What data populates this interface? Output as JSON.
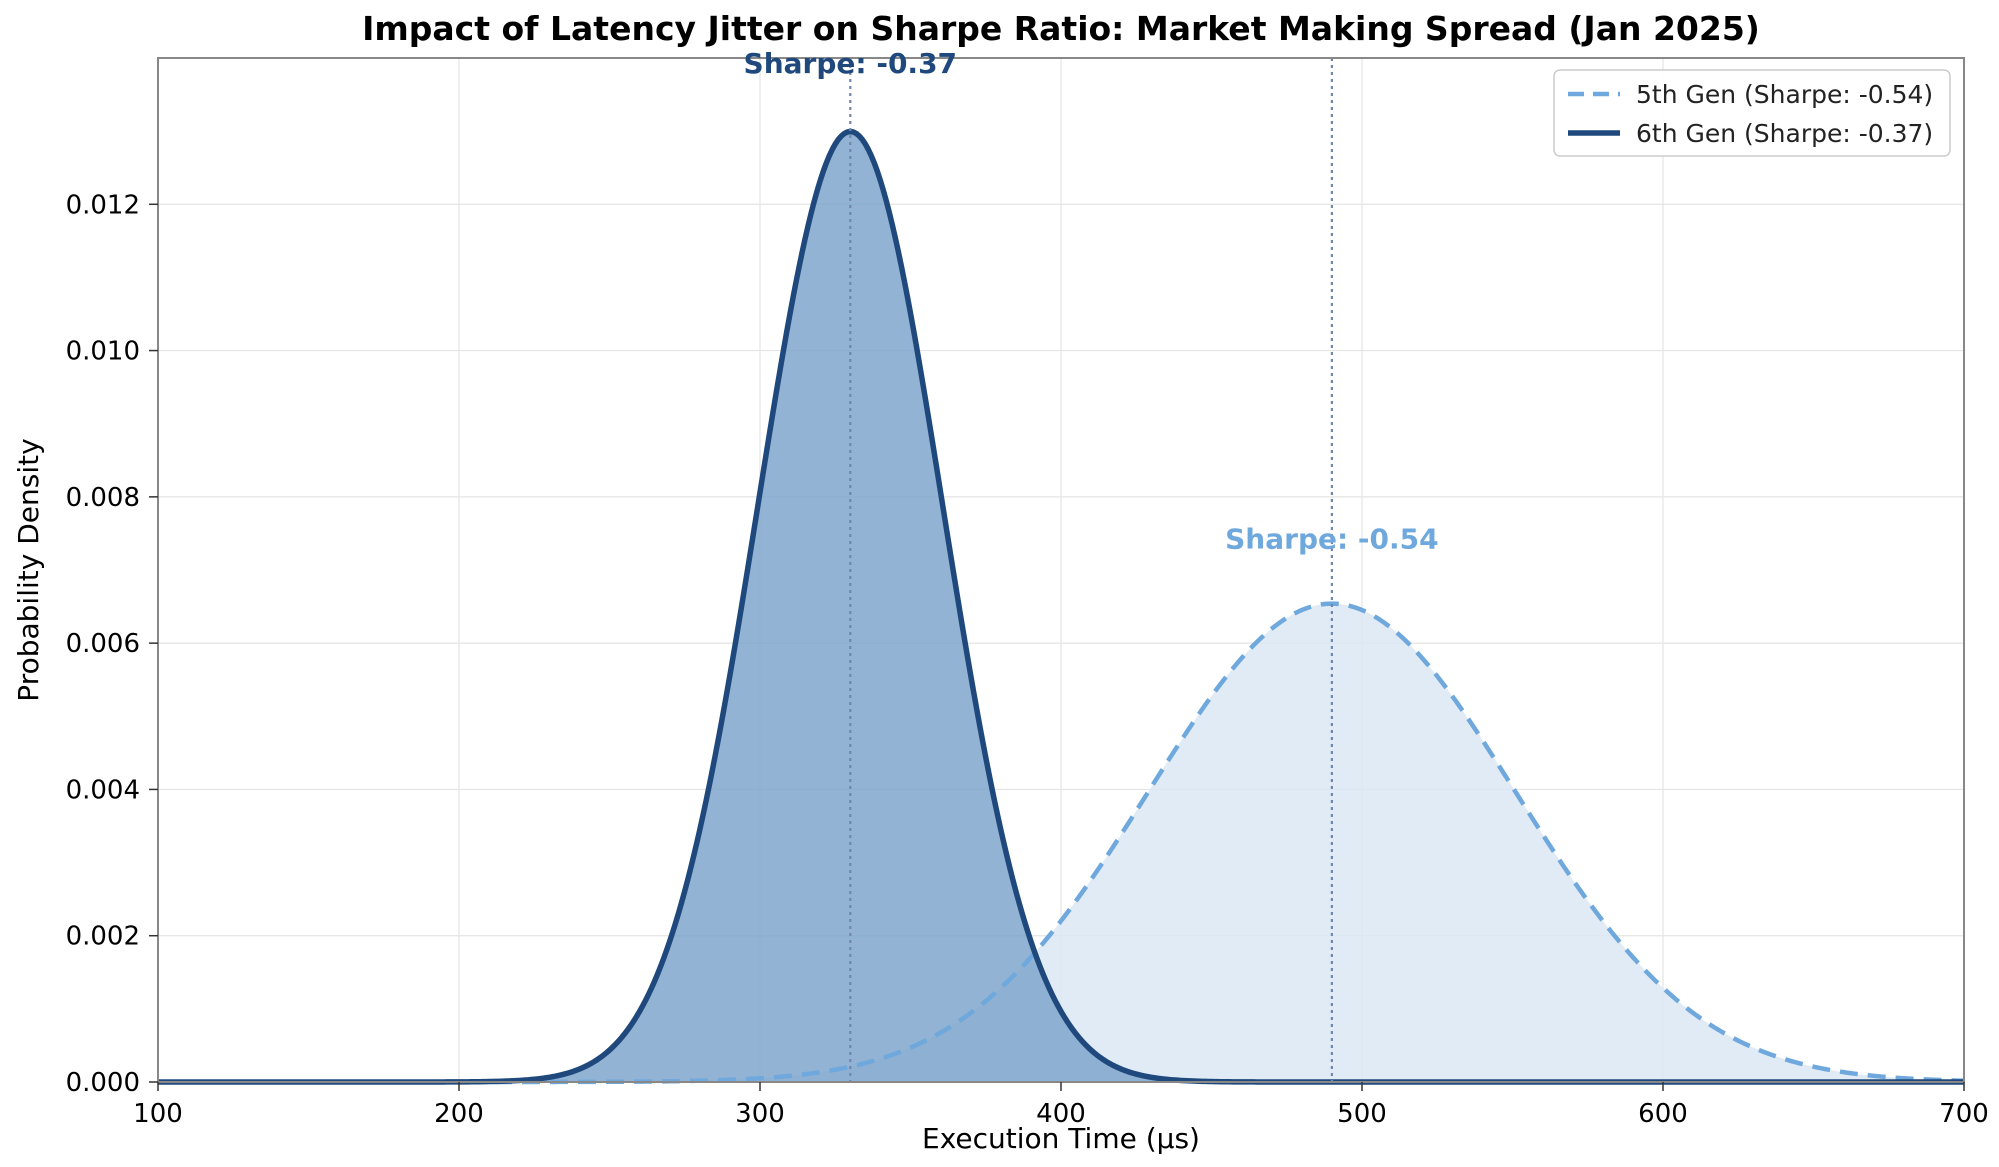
{
  "chart_data": {
    "type": "area",
    "title": "Impact of Latency Jitter on Sharpe Ratio: Market Making Spread (Jan 2025)",
    "xlabel": "Execution Time (µs)",
    "ylabel": "Probability Density",
    "xlim": [
      100,
      700
    ],
    "ylim": [
      0,
      0.014
    ],
    "x_ticks": [
      100,
      200,
      300,
      400,
      500,
      600,
      700
    ],
    "x_tick_labels": [
      "100",
      "200",
      "300",
      "400",
      "500",
      "600",
      "700"
    ],
    "y_ticks": [
      0,
      0.002,
      0.004,
      0.006,
      0.008,
      0.01,
      0.012
    ],
    "y_tick_labels": [
      "0.000",
      "0.002",
      "0.004",
      "0.006",
      "0.008",
      "0.010",
      "0.012"
    ],
    "grid": true,
    "legend_position": "upper right",
    "series": [
      {
        "name": "5th Gen (Sharpe: -0.54)",
        "distribution": "normal",
        "mean": 490,
        "std": 61,
        "peak_density": 0.0065,
        "line_style": "dashed",
        "line_color": "#6fa8dc",
        "fill_color": "#dce8f4",
        "peak_label": "Sharpe: -0.54"
      },
      {
        "name": "6th Gen (Sharpe: -0.37)",
        "distribution": "normal",
        "mean": 330,
        "std": 30.7,
        "peak_density": 0.013,
        "line_style": "solid",
        "line_color": "#1f497d",
        "fill_color": "#7fa6cb",
        "peak_label": "Sharpe: -0.37"
      }
    ]
  }
}
